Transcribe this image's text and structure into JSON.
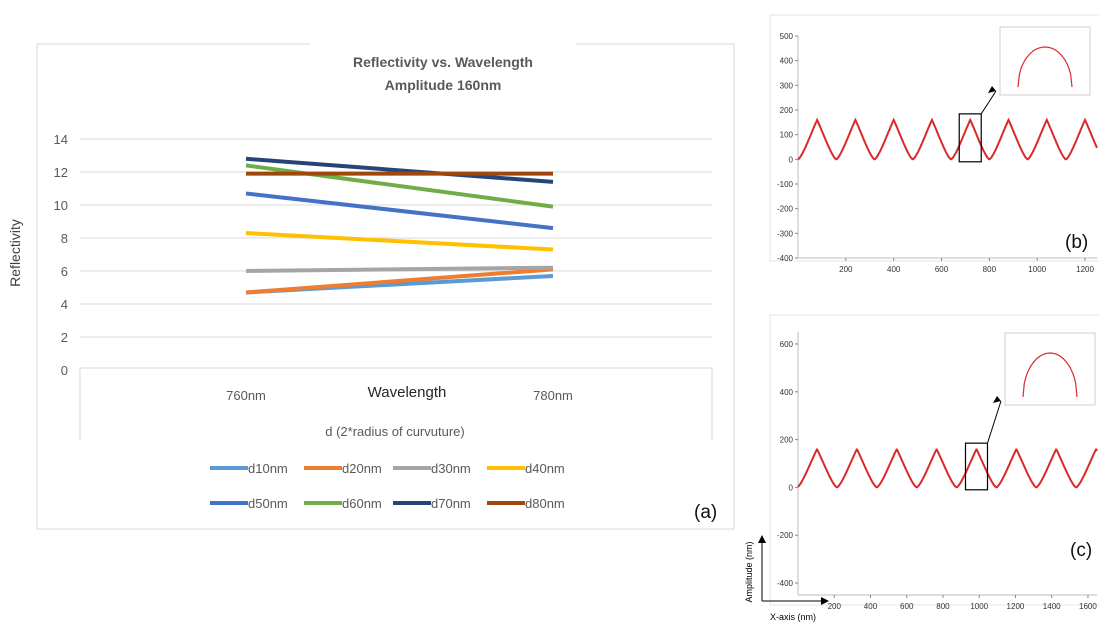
{
  "panel_a": {
    "title_line1": "Reflectivity vs. Wavelength",
    "title_line2": "Amplitude 160nm",
    "ylabel": "Reflectivity",
    "xlabel": "Wavelength",
    "sublabel": "d (2*radius of curvuture)",
    "panel_label": "(a)"
  },
  "panel_b": {
    "panel_label": "(b)"
  },
  "panel_c": {
    "panel_label": "(c)"
  },
  "axes_legend": {
    "y": "Amplitude (nm)",
    "x": "X-axis (nm)"
  },
  "chart_data": [
    {
      "type": "line",
      "title": "Reflectivity vs. Wavelength Amplitude 160nm",
      "xlabel": "Wavelength",
      "ylabel": "Reflectivity",
      "categories": [
        "760nm",
        "780nm"
      ],
      "ylim": [
        0,
        14
      ],
      "yticks": [
        0,
        2,
        4,
        6,
        8,
        10,
        12,
        14
      ],
      "grid": true,
      "legend": "bottom",
      "series": [
        {
          "name": "d10nm",
          "color": "#5B9BD5",
          "values": [
            4.7,
            5.7
          ]
        },
        {
          "name": "d20nm",
          "color": "#ED7D31",
          "values": [
            4.7,
            6.1
          ]
        },
        {
          "name": "d30nm",
          "color": "#A5A5A5",
          "values": [
            6.0,
            6.2
          ]
        },
        {
          "name": "d40nm",
          "color": "#FFC000",
          "values": [
            8.3,
            7.3
          ]
        },
        {
          "name": "d50nm",
          "color": "#4472C4",
          "values": [
            10.7,
            8.6
          ]
        },
        {
          "name": "d60nm",
          "color": "#70AD47",
          "values": [
            12.4,
            9.9
          ]
        },
        {
          "name": "d70nm",
          "color": "#264478",
          "values": [
            12.8,
            11.4
          ]
        },
        {
          "name": "d80nm",
          "color": "#9E480E",
          "values": [
            11.9,
            11.9
          ]
        }
      ]
    },
    {
      "type": "line",
      "ylim": [
        -400,
        500
      ],
      "yticks": [
        -400,
        -300,
        -200,
        -100,
        0,
        100,
        200,
        300,
        400,
        500
      ],
      "xlim": [
        0,
        1250
      ],
      "xticks": [
        200,
        400,
        600,
        800,
        1000,
        1200
      ],
      "color": "#D9292B",
      "peak_amplitude": 160,
      "period": 160,
      "first_peak": 80
    },
    {
      "type": "line",
      "ylim": [
        -450,
        650
      ],
      "yticks": [
        -400,
        -200,
        0,
        200,
        400,
        600
      ],
      "xlim": [
        0,
        1650
      ],
      "xticks": [
        200,
        400,
        600,
        800,
        1000,
        1200,
        1400,
        1600
      ],
      "color": "#D9292B",
      "peak_amplitude": 160,
      "period": 220,
      "first_peak": 105
    }
  ]
}
